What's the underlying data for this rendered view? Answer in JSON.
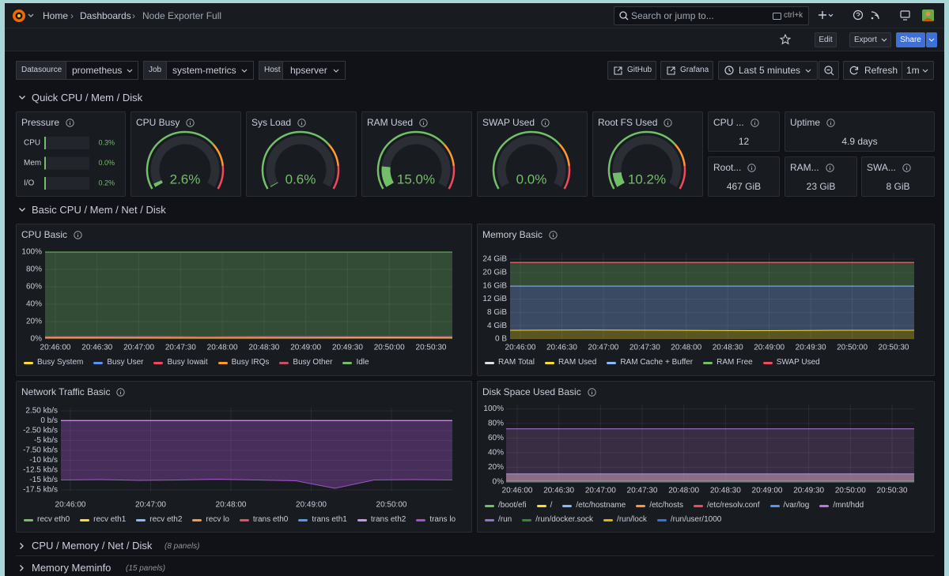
{
  "breadcrumbs": [
    "Home",
    "Dashboards",
    "Node Exporter Full"
  ],
  "search": {
    "placeholder": "Search or jump to...",
    "shortcut": "ctrl+k"
  },
  "toolbar": {
    "edit": "Edit",
    "export": "Export",
    "share": "Share"
  },
  "variables": [
    {
      "label": "Datasource",
      "value": "prometheus"
    },
    {
      "label": "Job",
      "value": "system-metrics"
    },
    {
      "label": "Host",
      "value": "hpserver"
    }
  ],
  "links": [
    "GitHub",
    "Grafana"
  ],
  "time_range": "Last 5 minutes",
  "refresh": "Refresh",
  "refresh_interval": "1m",
  "rows": [
    {
      "title": "Quick CPU / Mem / Disk"
    },
    {
      "title": "Basic CPU / Mem / Net / Disk"
    },
    {
      "title": "CPU / Memory / Net / Disk",
      "note": "(8 panels)"
    },
    {
      "title": "Memory Meminfo",
      "note": "(15 panels)"
    }
  ],
  "pressure": {
    "title": "Pressure",
    "range": [
      0,
      100
    ],
    "items": [
      {
        "label": "CPU",
        "value": 0.3,
        "value_label": "0.3%"
      },
      {
        "label": "Mem",
        "value": 0.0,
        "value_label": "0.0%"
      },
      {
        "label": "I/O",
        "value": 0.2,
        "value_label": "0.2%"
      }
    ]
  },
  "gauges": {
    "range": [
      0,
      100
    ],
    "items": [
      {
        "title": "CPU Busy",
        "value": 2.6,
        "value_label": "2.6%"
      },
      {
        "title": "Sys Load",
        "value": 0.6,
        "value_label": "0.6%"
      },
      {
        "title": "RAM Used",
        "value": 15.0,
        "value_label": "15.0%"
      },
      {
        "title": "SWAP Used",
        "value": 0.0,
        "value_label": "0.0%"
      },
      {
        "title": "Root FS Used",
        "value": 10.2,
        "value_label": "10.2%"
      }
    ]
  },
  "stats": [
    {
      "title": "CPU ...",
      "value": 12
    },
    {
      "title": "Uptime",
      "value": "4.9 days"
    },
    {
      "title": "Root...",
      "value": "467 GiB"
    },
    {
      "title": "RAM...",
      "value": "23 GiB"
    },
    {
      "title": "SWA...",
      "value": "8 GiB"
    }
  ],
  "timeseries": [
    {
      "title": "CPU Basic",
      "ylim": [
        0,
        100
      ],
      "yticks": [
        {
          "value": 0,
          "label": "0%"
        },
        {
          "value": 20,
          "label": "20%"
        },
        {
          "value": 40,
          "label": "40%"
        },
        {
          "value": 60,
          "label": "60%"
        },
        {
          "value": 80,
          "label": "80%"
        },
        {
          "value": 100,
          "label": "100%"
        }
      ],
      "xticks": [
        "20:46:00",
        "20:46:30",
        "20:47:00",
        "20:47:30",
        "20:48:00",
        "20:48:30",
        "20:49:00",
        "20:49:30",
        "20:50:00",
        "20:50:30"
      ],
      "series": [
        {
          "name": "Busy System",
          "color": "#fade2a",
          "stacked": true,
          "values": [
            1.2,
            1.3,
            1.1,
            1.2,
            1.4,
            1.2
          ]
        },
        {
          "name": "Busy User",
          "color": "#5794f2",
          "stacked": true,
          "values": [
            1.0,
            1.1,
            1.0,
            1.2,
            0.9,
            1.1
          ]
        },
        {
          "name": "Busy Iowait",
          "color": "#f2495c",
          "stacked": true,
          "values": [
            0.1,
            0.1,
            0.1,
            0.1,
            0.1,
            0.1
          ]
        },
        {
          "name": "Busy IRQs",
          "color": "#ff9830",
          "stacked": true,
          "values": [
            0.1,
            0.1,
            0.1,
            0.1,
            0.1,
            0.1
          ]
        },
        {
          "name": "Busy Other",
          "color": "#c4506a",
          "stacked": true,
          "values": [
            0.1,
            0.1,
            0.1,
            0.1,
            0.1,
            0.1
          ]
        },
        {
          "name": "Idle",
          "color": "#73bf69",
          "stacked": true,
          "values": [
            97.5,
            97.3,
            97.6,
            97.3,
            97.4,
            97.4
          ]
        }
      ]
    },
    {
      "title": "Memory Basic",
      "ylim": [
        0,
        25.9
      ],
      "yticks": [
        {
          "value": 0,
          "label": "0 B"
        },
        {
          "value": 4,
          "label": "4 GiB"
        },
        {
          "value": 8,
          "label": "8 GiB"
        },
        {
          "value": 12,
          "label": "12 GiB"
        },
        {
          "value": 16,
          "label": "16 GiB"
        },
        {
          "value": 20,
          "label": "20 GiB"
        },
        {
          "value": 24,
          "label": "24 GiB"
        }
      ],
      "xticks": [
        "20:46:00",
        "20:46:30",
        "20:47:00",
        "20:47:30",
        "20:48:00",
        "20:48:30",
        "20:49:00",
        "20:49:30",
        "20:50:00",
        "20:50:30"
      ],
      "series": [
        {
          "name": "RAM Total",
          "color": "#e0e0e0",
          "line_only": true,
          "values": [
            23,
            23,
            23,
            23,
            23,
            23
          ]
        },
        {
          "name": "RAM Used",
          "color": "#fade2a",
          "stacked": true,
          "values": [
            2.6,
            2.7,
            2.6,
            2.5,
            2.6,
            2.6
          ]
        },
        {
          "name": "RAM Cache + Buffer",
          "color": "#8ab8ff",
          "stacked": true,
          "values": [
            13.3,
            13.2,
            13.3,
            13.4,
            13.3,
            13.3
          ]
        },
        {
          "name": "RAM Free",
          "color": "#73bf69",
          "stacked": true,
          "values": [
            7.1,
            7.1,
            7.1,
            7.1,
            7.1,
            7.1
          ]
        },
        {
          "name": "SWAP Used",
          "color": "#f2495c",
          "stacked": true,
          "values": [
            0,
            0,
            0,
            0,
            0,
            0
          ]
        }
      ]
    },
    {
      "title": "Network Traffic Basic",
      "ylim": [
        -17.9,
        3.3
      ],
      "yticks": [
        {
          "value": 2.5,
          "label": "2.50 kb/s"
        },
        {
          "value": 0,
          "label": "0 b/s"
        },
        {
          "value": -2.5,
          "label": "-2.50 kb/s"
        },
        {
          "value": -5,
          "label": "-5 kb/s"
        },
        {
          "value": -7.5,
          "label": "-7.50 kb/s"
        },
        {
          "value": -10,
          "label": "-10 kb/s"
        },
        {
          "value": -12.5,
          "label": "-12.5 kb/s"
        },
        {
          "value": -15,
          "label": "-15 kb/s"
        },
        {
          "value": -17.5,
          "label": "-17.5 kb/s"
        }
      ],
      "xticks": [
        "20:46:00",
        "20:47:00",
        "20:48:00",
        "20:49:00",
        "20:50:00"
      ],
      "series": [
        {
          "name": "recv eth0",
          "color": "#73bf69",
          "values": [
            0,
            0
          ]
        },
        {
          "name": "recv eth1",
          "color": "#fade2a",
          "values": [
            0,
            0
          ]
        },
        {
          "name": "recv eth2",
          "color": "#8ab8ff",
          "values": [
            0,
            0
          ]
        },
        {
          "name": "recv lo",
          "color": "#ff9830",
          "values": [
            0,
            0
          ]
        },
        {
          "name": "trans eth0",
          "color": "#f2495c",
          "values": [
            0,
            0
          ]
        },
        {
          "name": "trans eth1",
          "color": "#5794f2",
          "values": [
            0.1,
            0.1
          ]
        },
        {
          "name": "trans eth2",
          "color": "#ca95e5",
          "values": [
            0,
            0
          ]
        },
        {
          "name": "trans lo",
          "color": "#a352cc",
          "values": [
            -15.0,
            -14.9,
            -15.1,
            -15.0,
            -14.8,
            -15.0,
            -15.2,
            -17.1,
            -15.0,
            -14.9,
            -15.0
          ]
        }
      ]
    },
    {
      "title": "Disk Space Used Basic",
      "ylim": [
        0,
        106
      ],
      "yticks": [
        {
          "value": 0,
          "label": "0%"
        },
        {
          "value": 20,
          "label": "20%"
        },
        {
          "value": 40,
          "label": "40%"
        },
        {
          "value": 60,
          "label": "60%"
        },
        {
          "value": 80,
          "label": "80%"
        },
        {
          "value": 100,
          "label": "100%"
        }
      ],
      "xticks": [
        "20:46:00",
        "20:46:30",
        "20:47:00",
        "20:47:30",
        "20:48:00",
        "20:48:30",
        "20:49:00",
        "20:49:30",
        "20:50:00",
        "20:50:30"
      ],
      "series": [
        {
          "name": "/boot/efi",
          "color": "#73bf69",
          "values": [
            1.2,
            1.2
          ]
        },
        {
          "name": "/",
          "color": "#fade2a",
          "values": [
            10.9,
            10.9
          ]
        },
        {
          "name": "/etc/hostname",
          "color": "#8ab8ff",
          "values": [
            10.9,
            10.9
          ]
        },
        {
          "name": "/etc/hosts",
          "color": "#ff9830",
          "values": [
            10.9,
            10.9
          ]
        },
        {
          "name": "/etc/resolv.conf",
          "color": "#f2495c",
          "values": [
            10.9,
            10.9
          ]
        },
        {
          "name": "/var/log",
          "color": "#5794f2",
          "values": [
            10.9,
            10.9
          ]
        },
        {
          "name": "/mnt/hdd",
          "color": "#b877d9",
          "values": [
            72.8,
            72.8
          ]
        },
        {
          "name": "/run",
          "color": "#8f75c9",
          "values": [
            0.1,
            0.1
          ]
        },
        {
          "name": "/run/docker.sock",
          "color": "#37872d",
          "values": [
            0.1,
            0.1
          ]
        },
        {
          "name": "/run/lock",
          "color": "#e0b400",
          "values": [
            0,
            0
          ]
        },
        {
          "name": "/run/user/1000",
          "color": "#3274d9",
          "values": [
            0.1,
            0.1
          ]
        }
      ]
    }
  ]
}
